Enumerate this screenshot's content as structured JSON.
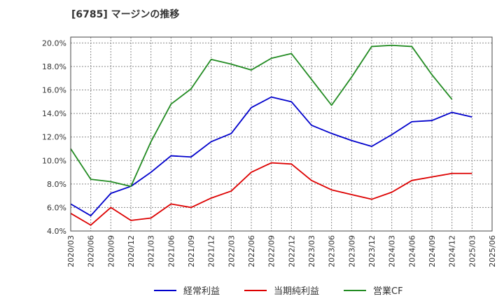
{
  "chart_data": {
    "type": "line",
    "title": "[6785]  マージンの推移",
    "xlabel": "",
    "ylabel": "",
    "x": [
      "2020/03",
      "2020/06",
      "2020/09",
      "2020/12",
      "2021/03",
      "2021/06",
      "2021/09",
      "2021/12",
      "2022/03",
      "2022/06",
      "2022/09",
      "2022/12",
      "2023/03",
      "2023/06",
      "2023/09",
      "2023/12",
      "2024/03",
      "2024/06",
      "2024/09",
      "2024/12",
      "2025/03",
      "2025/06"
    ],
    "ylim": [
      4.0,
      20.5
    ],
    "yticks": [
      4.0,
      6.0,
      8.0,
      10.0,
      12.0,
      14.0,
      16.0,
      18.0,
      20.0
    ],
    "ytick_labels": [
      "4.0%",
      "6.0%",
      "8.0%",
      "10.0%",
      "12.0%",
      "14.0%",
      "16.0%",
      "18.0%",
      "20.0%"
    ],
    "grid": true,
    "legend_position": "bottom",
    "series": [
      {
        "name": "経常利益",
        "color": "#0000cc",
        "values": [
          6.3,
          5.3,
          7.2,
          7.8,
          9.0,
          10.4,
          10.3,
          11.6,
          12.3,
          14.5,
          15.4,
          15.0,
          13.0,
          12.3,
          11.7,
          11.2,
          12.2,
          13.3,
          13.4,
          14.1,
          13.7,
          null
        ]
      },
      {
        "name": "当期純利益",
        "color": "#dd0000",
        "values": [
          5.5,
          4.5,
          6.0,
          4.9,
          5.1,
          6.3,
          6.0,
          6.8,
          7.4,
          9.0,
          9.8,
          9.7,
          8.3,
          7.5,
          7.1,
          6.7,
          7.3,
          8.3,
          8.6,
          8.9,
          8.9,
          null
        ]
      },
      {
        "name": "営業CF",
        "color": "#228b22",
        "values": [
          11.0,
          8.4,
          8.2,
          7.8,
          11.6,
          14.8,
          16.1,
          18.6,
          18.2,
          17.7,
          18.7,
          19.1,
          16.9,
          14.7,
          17.1,
          19.7,
          19.8,
          19.7,
          17.3,
          15.2,
          null,
          null
        ]
      }
    ]
  }
}
